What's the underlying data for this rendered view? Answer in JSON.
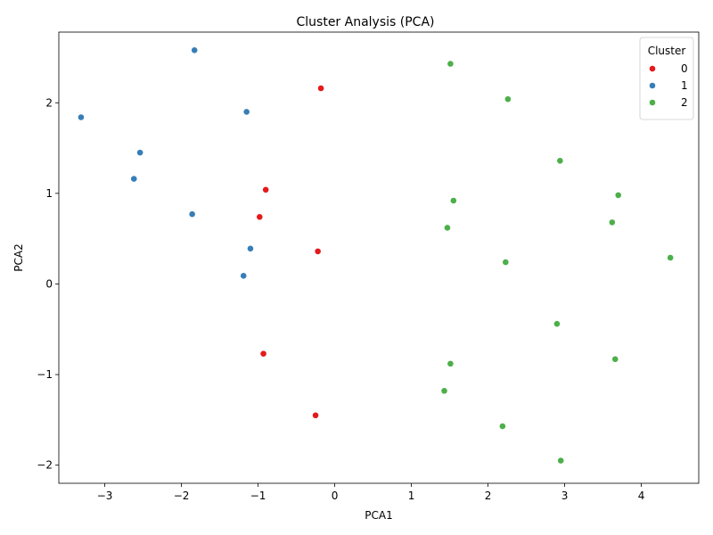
{
  "chart_data": {
    "type": "scatter",
    "title": "Cluster Analysis (PCA)",
    "xlabel": "PCA1",
    "ylabel": "PCA2",
    "xlim": [
      -3.6,
      4.75
    ],
    "ylim": [
      -2.2,
      2.78
    ],
    "xticks": [
      -3,
      -2,
      -1,
      0,
      1,
      2,
      3,
      4
    ],
    "xtick_labels": [
      "−3",
      "−2",
      "−1",
      "0",
      "1",
      "2",
      "3",
      "4"
    ],
    "yticks": [
      -2,
      -1,
      0,
      1,
      2
    ],
    "ytick_labels": [
      "−2",
      "−1",
      "0",
      "1",
      "2"
    ],
    "grid": false,
    "legend": {
      "title": "Cluster",
      "placement": "top-right"
    },
    "series": [
      {
        "name": "0",
        "color": "#e41a1c",
        "points": [
          {
            "x": -0.18,
            "y": 2.16
          },
          {
            "x": -0.9,
            "y": 1.04
          },
          {
            "x": -0.98,
            "y": 0.74
          },
          {
            "x": -0.22,
            "y": 0.36
          },
          {
            "x": -0.93,
            "y": -0.77
          },
          {
            "x": -0.25,
            "y": -1.45
          }
        ]
      },
      {
        "name": "1",
        "color": "#377eb8",
        "points": [
          {
            "x": -1.83,
            "y": 2.58
          },
          {
            "x": -3.31,
            "y": 1.84
          },
          {
            "x": -1.15,
            "y": 1.9
          },
          {
            "x": -2.54,
            "y": 1.45
          },
          {
            "x": -2.62,
            "y": 1.16
          },
          {
            "x": -1.86,
            "y": 0.77
          },
          {
            "x": -1.1,
            "y": 0.39
          },
          {
            "x": -1.19,
            "y": 0.09
          }
        ]
      },
      {
        "name": "2",
        "color": "#4daf4a",
        "points": [
          {
            "x": 1.51,
            "y": 2.43
          },
          {
            "x": 2.26,
            "y": 2.04
          },
          {
            "x": 2.94,
            "y": 1.36
          },
          {
            "x": 3.7,
            "y": 0.98
          },
          {
            "x": 1.55,
            "y": 0.92
          },
          {
            "x": 3.62,
            "y": 0.68
          },
          {
            "x": 1.47,
            "y": 0.62
          },
          {
            "x": 2.23,
            "y": 0.24
          },
          {
            "x": 4.38,
            "y": 0.29
          },
          {
            "x": 2.9,
            "y": -0.44
          },
          {
            "x": 3.66,
            "y": -0.83
          },
          {
            "x": 1.51,
            "y": -0.88
          },
          {
            "x": 1.43,
            "y": -1.18
          },
          {
            "x": 2.19,
            "y": -1.57
          },
          {
            "x": 2.95,
            "y": -1.95
          }
        ]
      }
    ]
  }
}
